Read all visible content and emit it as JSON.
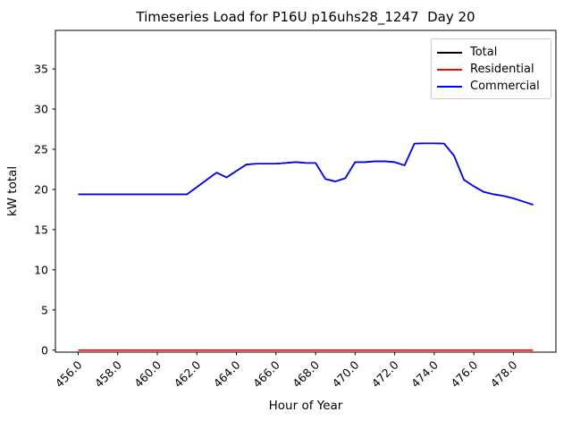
{
  "chart_data": {
    "type": "line",
    "title": "Timeseries Load for P16U p16uhs28_1247  Day 20",
    "xlabel": "Hour of Year",
    "ylabel": "kW total",
    "xlim": [
      454.85,
      480.15
    ],
    "ylim": [
      -0.25,
      39.8
    ],
    "grid": false,
    "legend_position": "upper right",
    "x_ticks": [
      456,
      458,
      460,
      462,
      464,
      466,
      468,
      470,
      472,
      474,
      476,
      478
    ],
    "x_tick_labels": [
      "456.0",
      "458.0",
      "460.0",
      "462.0",
      "464.0",
      "466.0",
      "468.0",
      "470.0",
      "472.0",
      "474.0",
      "476.0",
      "478.0"
    ],
    "y_ticks": [
      0,
      5,
      10,
      15,
      20,
      25,
      30,
      35
    ],
    "y_tick_labels": [
      "0",
      "5",
      "10",
      "15",
      "20",
      "25",
      "30",
      "35"
    ],
    "x": [
      456.0,
      456.5,
      457.0,
      457.5,
      458.0,
      458.5,
      459.0,
      459.5,
      460.0,
      460.5,
      461.0,
      461.5,
      462.0,
      462.5,
      463.0,
      463.5,
      464.0,
      464.5,
      465.0,
      465.5,
      466.0,
      466.5,
      467.0,
      467.5,
      468.0,
      468.5,
      469.0,
      469.5,
      470.0,
      470.5,
      471.0,
      471.5,
      472.0,
      472.5,
      473.0,
      473.5,
      474.0,
      474.5,
      475.0,
      475.5,
      476.0,
      476.5,
      477.0,
      477.5,
      478.0,
      478.5,
      479.0
    ],
    "series": [
      {
        "name": "Total",
        "color": "#000000",
        "values": [
          19.4,
          19.4,
          19.4,
          19.4,
          19.4,
          19.4,
          19.4,
          19.4,
          19.4,
          19.4,
          19.4,
          19.4,
          20.3,
          21.2,
          22.1,
          21.5,
          22.3,
          23.1,
          23.2,
          23.2,
          23.2,
          23.3,
          23.4,
          23.3,
          23.3,
          21.3,
          21.0,
          21.4,
          23.4,
          23.4,
          23.5,
          23.5,
          23.4,
          23.0,
          25.7,
          25.75,
          25.75,
          25.7,
          24.2,
          21.2,
          20.4,
          19.7,
          19.4,
          19.2,
          18.9,
          18.5,
          18.1
        ]
      },
      {
        "name": "Residential",
        "color": "#ff0000",
        "values": [
          0,
          0,
          0,
          0,
          0,
          0,
          0,
          0,
          0,
          0,
          0,
          0,
          0,
          0,
          0,
          0,
          0,
          0,
          0,
          0,
          0,
          0,
          0,
          0,
          0,
          0,
          0,
          0,
          0,
          0,
          0,
          0,
          0,
          0,
          0,
          0,
          0,
          0,
          0,
          0,
          0,
          0,
          0,
          0,
          0,
          0,
          0
        ]
      },
      {
        "name": "Commercial",
        "color": "#0000ff",
        "values": [
          19.4,
          19.4,
          19.4,
          19.4,
          19.4,
          19.4,
          19.4,
          19.4,
          19.4,
          19.4,
          19.4,
          19.4,
          20.3,
          21.2,
          22.1,
          21.5,
          22.3,
          23.1,
          23.2,
          23.2,
          23.2,
          23.3,
          23.4,
          23.3,
          23.3,
          21.3,
          21.0,
          21.4,
          23.4,
          23.4,
          23.5,
          23.5,
          23.4,
          23.0,
          25.7,
          25.75,
          25.75,
          25.7,
          24.2,
          21.2,
          20.4,
          19.7,
          19.4,
          19.2,
          18.9,
          18.5,
          18.1
        ]
      }
    ],
    "legend": [
      {
        "label": "Total",
        "color": "#000000"
      },
      {
        "label": "Residential",
        "color": "#ff0000"
      },
      {
        "label": "Commercial",
        "color": "#0000ff"
      }
    ]
  }
}
